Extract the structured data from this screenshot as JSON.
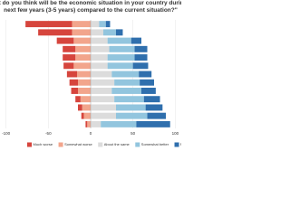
{
  "chart_data": {
    "type": "diverging-bar",
    "title": "\"What do you think will be the economic situation in your country during the next few years (3-5 years) compared to the current situation?\"",
    "categories": [
      null,
      null,
      null,
      null,
      null,
      null,
      null,
      null,
      null,
      null,
      null,
      null,
      null
    ],
    "series": [
      {
        "name": "Much worse",
        "color": "#d6453d",
        "side": "negative",
        "values": [
          55,
          40,
          20,
          15,
          15,
          12,
          12,
          10,
          8,
          6,
          5,
          3,
          2
        ]
      },
      {
        "name": "Somewhat worse",
        "color": "#f2a58c",
        "side": "negative",
        "values": [
          22,
          22,
          20,
          18,
          18,
          20,
          16,
          15,
          15,
          12,
          10,
          8,
          4
        ]
      },
      {
        "name": "About the same",
        "color": "#dcdcdc",
        "side": "positive",
        "values": [
          10,
          15,
          20,
          22,
          20,
          20,
          25,
          28,
          25,
          28,
          30,
          30,
          12
        ]
      },
      {
        "name": "Somewhat better",
        "color": "#92c5de",
        "side": "positive",
        "values": [
          8,
          15,
          28,
          30,
          32,
          30,
          32,
          30,
          35,
          35,
          35,
          37,
          42
        ]
      },
      {
        "name": "Much better",
        "color": "#2f6fad",
        "side": "positive",
        "values": [
          5,
          8,
          12,
          15,
          15,
          18,
          15,
          17,
          17,
          19,
          20,
          22,
          40
        ]
      }
    ],
    "xlim": [
      -105,
      105
    ],
    "xticks": [
      -100,
      -50,
      0,
      50,
      100
    ],
    "grid": true
  }
}
